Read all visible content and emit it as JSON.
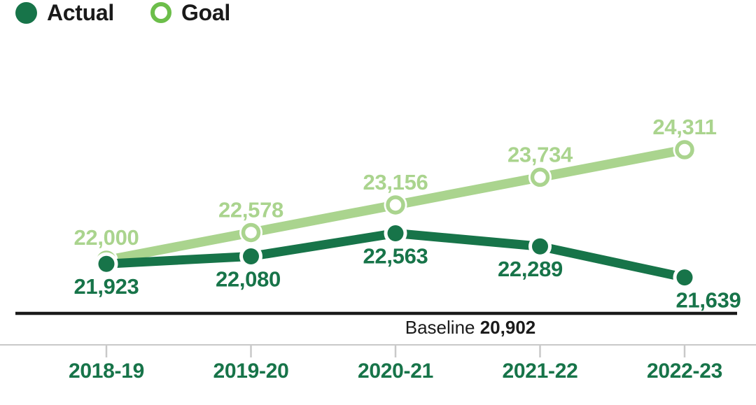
{
  "legend": {
    "actual_label": "Actual",
    "goal_label": "Goal"
  },
  "colors": {
    "actual": "#177449",
    "goal": "#AAD48E",
    "legend_goal_ring": "#6CBE4A",
    "ink": "#1A1A1A",
    "axis": "#C9C9C9"
  },
  "chart_data": {
    "type": "line",
    "categories": [
      "2018-19",
      "2019-20",
      "2020-21",
      "2021-22",
      "2022-23"
    ],
    "series": [
      {
        "name": "Actual",
        "marker": "filled",
        "color": "#177449",
        "values": [
          21923,
          22080,
          22563,
          22289,
          21639
        ],
        "labels": [
          "21,923",
          "22,080",
          "22,563",
          "22,289",
          "21,639"
        ],
        "label_position": "below"
      },
      {
        "name": "Goal",
        "marker": "open",
        "color": "#AAD48E",
        "values": [
          22000,
          22578,
          23156,
          23734,
          24311
        ],
        "labels": [
          "22,000",
          "22,578",
          "23,156",
          "23,734",
          "24,311"
        ],
        "label_position": "above"
      }
    ],
    "baseline": {
      "label": "Baseline",
      "value": 20902,
      "value_label": "20,902"
    },
    "legend_position": "top-left",
    "grid": false,
    "ylim_implied": [
      20902,
      24311
    ]
  }
}
